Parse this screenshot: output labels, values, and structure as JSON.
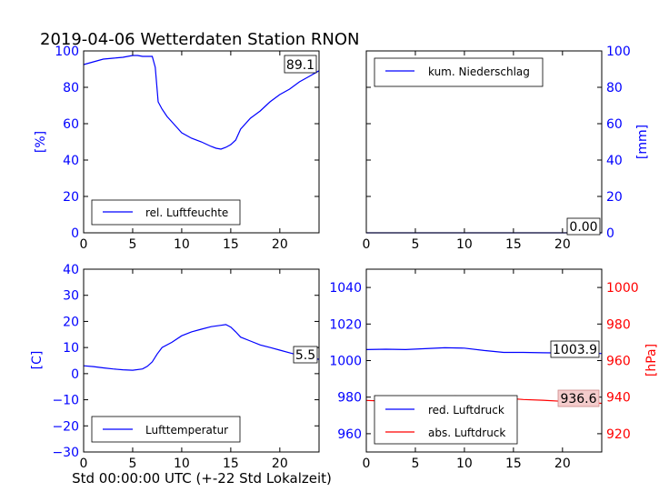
{
  "title": "2019-04-06 Wetterdaten Station RNON",
  "xlabel_bottom": "Std 00:00:00 UTC (+-22 Std Lokalzeit)",
  "colors": {
    "blue": "#0000ff",
    "red": "#ff0000",
    "black": "#000000"
  },
  "chart_data": [
    {
      "id": "humidity",
      "type": "line",
      "xlim": [
        0,
        24
      ],
      "ylim": [
        0,
        100
      ],
      "xticks": [
        "0",
        "5",
        "10",
        "15",
        "20"
      ],
      "yticks": [
        "0",
        "20",
        "40",
        "60",
        "80",
        "100"
      ],
      "ylabel": "[%]",
      "last_value": "89.1",
      "legend_position": "lower-center",
      "series": [
        {
          "name": "rel. Luftfeuchte",
          "color": "#0000ff",
          "x": [
            0,
            1,
            2,
            3,
            4,
            5,
            5.5,
            6,
            7,
            7.3,
            7.6,
            8,
            8.5,
            9,
            9.5,
            10,
            11,
            12,
            13,
            13.5,
            14,
            14.5,
            15,
            15.5,
            16,
            17,
            18,
            19,
            20,
            21,
            22,
            23,
            24
          ],
          "y": [
            92.5,
            94,
            95.5,
            96,
            96.5,
            97.5,
            97.5,
            97,
            97,
            91,
            72,
            68,
            64,
            61,
            58,
            55,
            52,
            50,
            47.5,
            46.5,
            46,
            47,
            48.5,
            51,
            57,
            63,
            67,
            72,
            76,
            79,
            83,
            86,
            89.1
          ]
        }
      ]
    },
    {
      "id": "precipitation",
      "type": "line",
      "xlim": [
        0,
        24
      ],
      "ylim": [
        0,
        100
      ],
      "xticks": [
        "0",
        "5",
        "10",
        "15",
        "20"
      ],
      "yticks": [
        "0",
        "20",
        "40",
        "60",
        "80",
        "100"
      ],
      "ylabel": "[mm]",
      "last_value": "0.00",
      "legend_position": "upper-left",
      "series": [
        {
          "name": "kum. Niederschlag",
          "color": "#0000ff",
          "x": [
            0,
            24
          ],
          "y": [
            0,
            0
          ]
        }
      ]
    },
    {
      "id": "temperature",
      "type": "line",
      "xlim": [
        0,
        24
      ],
      "ylim": [
        -30,
        40
      ],
      "xticks": [
        "0",
        "5",
        "10",
        "15",
        "20"
      ],
      "yticks": [
        "−30",
        "−20",
        "−10",
        "0",
        "10",
        "20",
        "30",
        "40"
      ],
      "ylabel": "[C]",
      "last_value": "5.5",
      "legend_position": "lower-center",
      "series": [
        {
          "name": "Lufttemperatur",
          "color": "#0000ff",
          "x": [
            0,
            1,
            2,
            3,
            4,
            5,
            6,
            6.5,
            7,
            7.5,
            8,
            9,
            10,
            11,
            12,
            13,
            14,
            14.5,
            15,
            15.5,
            16,
            17,
            18,
            19,
            20,
            21,
            22,
            23,
            24
          ],
          "y": [
            3,
            2.7,
            2.2,
            1.8,
            1.5,
            1.3,
            1.8,
            2.8,
            4.5,
            7.5,
            10,
            12,
            14.5,
            16,
            17,
            18,
            18.5,
            18.8,
            17.8,
            16,
            14,
            12.5,
            11,
            10,
            9,
            8,
            7,
            6.2,
            5.5
          ]
        }
      ]
    },
    {
      "id": "pressure",
      "type": "line",
      "xlim": [
        0,
        24
      ],
      "ylim": [
        950,
        1050
      ],
      "ylim_right": [
        910,
        1010
      ],
      "xticks": [
        "0",
        "5",
        "10",
        "15",
        "20"
      ],
      "yticks": [
        "960",
        "980",
        "1000",
        "1020",
        "1040"
      ],
      "yticks_right": [
        "920",
        "940",
        "960",
        "980",
        "1000"
      ],
      "ylabel_right": "[hPa]",
      "last_value_red": "1003.9",
      "last_value_abs": "936.6",
      "legend_position": "lower-center",
      "series": [
        {
          "name": "red. Luftdruck",
          "color": "#0000ff",
          "axis": "left",
          "x": [
            0,
            2,
            4,
            6,
            8,
            10,
            12,
            14,
            16,
            18,
            20,
            22,
            24
          ],
          "y": [
            1006,
            1006.2,
            1006,
            1006.5,
            1007,
            1006.8,
            1005.5,
            1004.5,
            1004.5,
            1004.3,
            1004.2,
            1004,
            1003.9
          ]
        },
        {
          "name": "abs. Luftdruck",
          "color": "#ff0000",
          "axis": "right",
          "x": [
            0,
            2,
            4,
            6,
            8,
            9,
            10,
            12,
            14,
            16,
            18,
            20,
            22,
            24
          ],
          "y": [
            938.2,
            937.8,
            937.7,
            938.3,
            940,
            940.6,
            940.5,
            939.8,
            939.5,
            938.7,
            938.3,
            937.7,
            937,
            936.6
          ]
        }
      ]
    }
  ]
}
